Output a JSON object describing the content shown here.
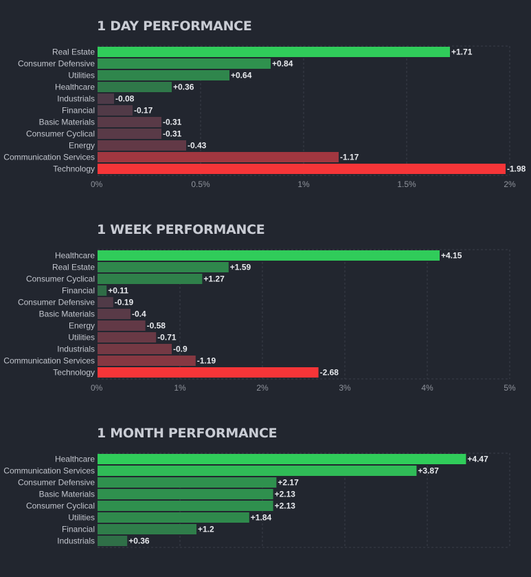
{
  "colors": {
    "background": "#22262f",
    "positive_strong": "#30cc5a",
    "positive_weak": "#2f6b46",
    "negative_strong": "#f63538",
    "negative_weak": "#4a3a48",
    "grid": "#3a3f4a"
  },
  "chart_data": [
    {
      "type": "bar",
      "orientation": "horizontal",
      "title": "1 DAY PERFORMANCE",
      "categories": [
        "Real Estate",
        "Consumer Defensive",
        "Utilities",
        "Healthcare",
        "Industrials",
        "Financial",
        "Basic Materials",
        "Consumer Cyclical",
        "Energy",
        "Communication Services",
        "Technology"
      ],
      "values": [
        1.71,
        0.84,
        0.64,
        0.36,
        -0.08,
        -0.17,
        -0.31,
        -0.31,
        -0.43,
        -1.17,
        -1.98
      ],
      "value_labels": [
        "+1.71",
        "+0.84",
        "+0.64",
        "+0.36",
        "-0.08",
        "-0.17",
        "-0.31",
        "-0.31",
        "-0.43",
        "-1.17",
        "-1.98"
      ],
      "xlim": [
        0,
        2
      ],
      "ticks": [
        0,
        0.5,
        1,
        1.5,
        2
      ],
      "tick_labels": [
        "0%",
        "0.5%",
        "1%",
        "1.5%",
        "2%"
      ],
      "bar_length": "absolute value",
      "grid": true
    },
    {
      "type": "bar",
      "orientation": "horizontal",
      "title": "1 WEEK PERFORMANCE",
      "categories": [
        "Healthcare",
        "Real Estate",
        "Consumer Cyclical",
        "Financial",
        "Consumer Defensive",
        "Basic Materials",
        "Energy",
        "Utilities",
        "Industrials",
        "Communication Services",
        "Technology"
      ],
      "values": [
        4.15,
        1.59,
        1.27,
        0.11,
        -0.19,
        -0.4,
        -0.58,
        -0.71,
        -0.9,
        -1.19,
        -2.68
      ],
      "value_labels": [
        "+4.15",
        "+1.59",
        "+1.27",
        "+0.11",
        "-0.19",
        "-0.4",
        "-0.58",
        "-0.71",
        "-0.9",
        "-1.19",
        "-2.68"
      ],
      "xlim": [
        0,
        5
      ],
      "ticks": [
        0,
        1,
        2,
        3,
        4,
        5
      ],
      "tick_labels": [
        "0%",
        "1%",
        "2%",
        "3%",
        "4%",
        "5%"
      ],
      "bar_length": "absolute value",
      "grid": true
    },
    {
      "type": "bar",
      "orientation": "horizontal",
      "title": "1 MONTH PERFORMANCE",
      "categories": [
        "Healthcare",
        "Communication Services",
        "Consumer Defensive",
        "Basic Materials",
        "Consumer Cyclical",
        "Utilities",
        "Financial",
        "Industrials"
      ],
      "values": [
        4.47,
        3.87,
        2.17,
        2.13,
        2.13,
        1.84,
        1.2,
        0.36
      ],
      "value_labels": [
        "+4.47",
        "+3.87",
        "+2.17",
        "+2.13",
        "+2.13",
        "+1.84",
        "+1.2",
        "+0.36"
      ],
      "xlim": [
        0,
        5
      ],
      "ticks": [
        0,
        1,
        2,
        3,
        4,
        5
      ],
      "tick_labels": [],
      "bar_length": "absolute value",
      "grid": true
    }
  ]
}
